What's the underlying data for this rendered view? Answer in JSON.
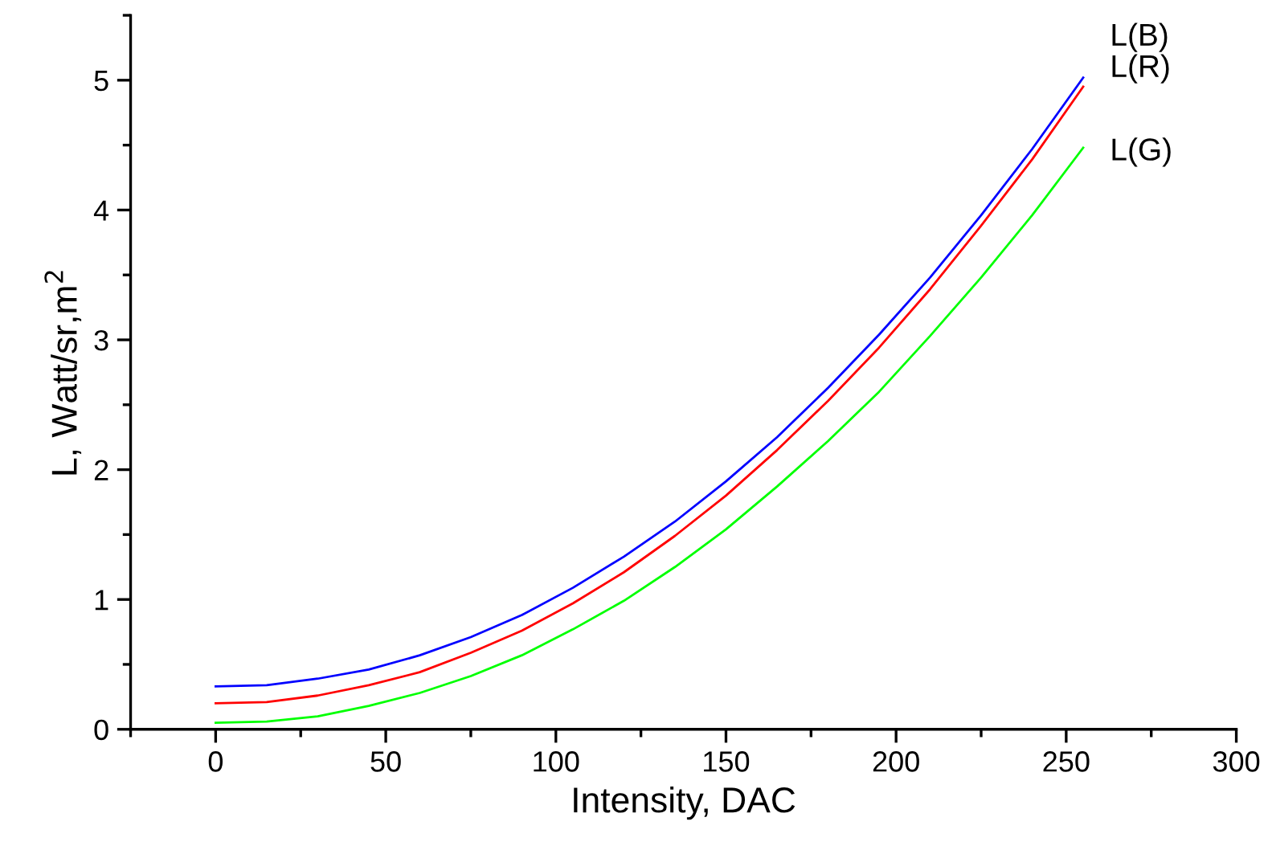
{
  "chart_data": {
    "type": "line",
    "xlabel": "Intensity, DAC",
    "ylabel": "L, Watt/sr,m$^{2}$",
    "x": [
      0,
      15,
      30,
      45,
      60,
      75,
      90,
      105,
      120,
      135,
      150,
      165,
      180,
      195,
      210,
      225,
      240,
      255
    ],
    "series": [
      {
        "name": "L(B)",
        "color": "#0000ff",
        "values": [
          0.33,
          0.34,
          0.39,
          0.46,
          0.57,
          0.71,
          0.88,
          1.09,
          1.33,
          1.6,
          1.91,
          2.25,
          2.63,
          3.04,
          3.48,
          3.96,
          4.47,
          5.02
        ]
      },
      {
        "name": "L(R)",
        "color": "#ff0000",
        "values": [
          0.2,
          0.21,
          0.26,
          0.34,
          0.44,
          0.59,
          0.76,
          0.97,
          1.21,
          1.49,
          1.8,
          2.15,
          2.53,
          2.94,
          3.39,
          3.88,
          4.39,
          4.95
        ]
      },
      {
        "name": "L(G)",
        "color": "#00ff00",
        "values": [
          0.05,
          0.06,
          0.1,
          0.18,
          0.28,
          0.41,
          0.57,
          0.77,
          0.99,
          1.25,
          1.54,
          1.87,
          2.22,
          2.6,
          3.03,
          3.48,
          3.96,
          4.48
        ]
      }
    ],
    "xlim": [
      -25,
      300
    ],
    "xticks": [
      0,
      50,
      100,
      150,
      200,
      250,
      300
    ],
    "ylim": [
      0,
      5.5
    ],
    "yticks": [
      0,
      1,
      2,
      3,
      4,
      5
    ],
    "grid": false,
    "legend": false,
    "marker": "none",
    "line_style": "solid"
  }
}
